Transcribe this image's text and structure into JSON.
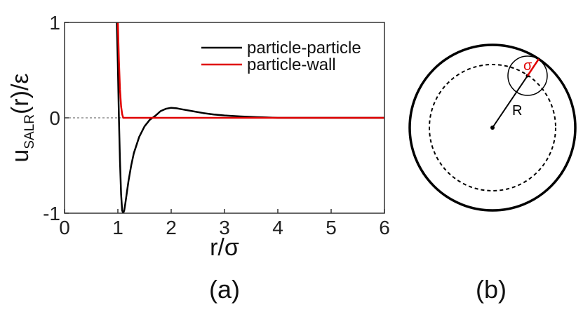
{
  "chart_data": {
    "type": "line",
    "xlabel": "r/σ",
    "ylabel_main": "u",
    "ylabel_sub": "SALR",
    "ylabel_tail": "(r)/ε",
    "xlim": [
      0,
      6
    ],
    "ylim": [
      -1,
      1
    ],
    "xticks": [
      0,
      1,
      2,
      3,
      4,
      5,
      6
    ],
    "yticks": [
      -1,
      0,
      1
    ],
    "xtick_labels": [
      "0",
      "1",
      "2",
      "3",
      "4",
      "5",
      "6"
    ],
    "ytick_labels": [
      "-1",
      "0",
      "1"
    ],
    "reference_line": {
      "y": 0,
      "style": "dashed"
    },
    "legend_position": "top-right",
    "series": [
      {
        "name": "particle-particle",
        "color": "#000000",
        "x": [
          0.98,
          1.0,
          1.02,
          1.04,
          1.06,
          1.08,
          1.1,
          1.12,
          1.14,
          1.17,
          1.2,
          1.25,
          1.3,
          1.4,
          1.5,
          1.6,
          1.65,
          1.7,
          1.8,
          1.9,
          2.0,
          2.1,
          2.2,
          2.4,
          2.6,
          2.8,
          3.0,
          3.3,
          3.6,
          4.0,
          4.5,
          5.0,
          6.0
        ],
        "y": [
          1.0,
          0.55,
          0.0,
          -0.45,
          -0.8,
          -0.97,
          -1.0,
          -0.97,
          -0.9,
          -0.78,
          -0.66,
          -0.5,
          -0.37,
          -0.2,
          -0.09,
          -0.02,
          0.0,
          0.02,
          0.07,
          0.095,
          0.105,
          0.1,
          0.09,
          0.07,
          0.05,
          0.035,
          0.025,
          0.015,
          0.007,
          0.0,
          0.0,
          0.0,
          0.0
        ]
      },
      {
        "name": "particle-wall",
        "color": "#e00000",
        "x": [
          1.0,
          1.02,
          1.04,
          1.06,
          1.08,
          1.1,
          1.12,
          2.0,
          4.0,
          6.0
        ],
        "y": [
          1.0,
          0.6,
          0.3,
          0.12,
          0.04,
          0.0,
          0.0,
          0.0,
          0.0,
          0.0
        ]
      }
    ]
  },
  "panel_labels": {
    "a": "(a)",
    "b": "(b)"
  },
  "diagram": {
    "radius_label": "R",
    "sigma_label": "σ",
    "sigma_color": "#e00000"
  }
}
